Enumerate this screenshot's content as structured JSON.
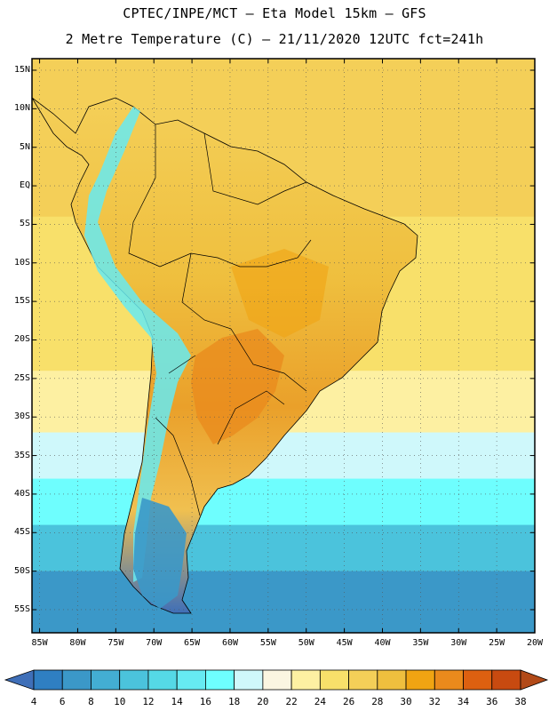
{
  "title": {
    "line1": "CPTEC/INPE/MCT –  Eta Model 15km – GFS",
    "line2": "2 Metre Temperature (C) – 21/11/2020 12UTC fct=241h"
  },
  "map": {
    "region": "South America",
    "lat_range": [
      -58,
      16.5
    ],
    "lon_range": [
      -86,
      -20
    ],
    "lat_labels": [
      "15N",
      "10N",
      "5N",
      "EQ",
      "5S",
      "10S",
      "15S",
      "20S",
      "25S",
      "30S",
      "35S",
      "40S",
      "45S",
      "50S",
      "55S"
    ],
    "lon_labels": [
      "85W",
      "80W",
      "75W",
      "70W",
      "65W",
      "60W",
      "55W",
      "50W",
      "45W",
      "40W",
      "35W",
      "30W",
      "25W",
      "20W"
    ],
    "ocean_temperature_bands_C": [
      {
        "from_lat": 16.5,
        "to_lat": -4,
        "value": 26
      },
      {
        "from_lat": -4,
        "to_lat": -14,
        "value": 25
      },
      {
        "from_lat": -14,
        "to_lat": -24,
        "value": 24
      },
      {
        "from_lat": -24,
        "to_lat": -32,
        "value": 22
      },
      {
        "from_lat": -32,
        "to_lat": -38,
        "value": 19
      },
      {
        "from_lat": -38,
        "to_lat": -44,
        "value": 16
      },
      {
        "from_lat": -44,
        "to_lat": -50,
        "value": 11
      },
      {
        "from_lat": -50,
        "to_lat": -58,
        "value": 7
      }
    ]
  },
  "colorbar": {
    "labels": [
      "4",
      "6",
      "8",
      "10",
      "12",
      "14",
      "16",
      "18",
      "20",
      "22",
      "24",
      "26",
      "28",
      "30",
      "32",
      "34",
      "36",
      "38"
    ],
    "colors": [
      "#3f6fb8",
      "#2f7fc2",
      "#3b98c8",
      "#43aed3",
      "#4bc3dc",
      "#55d9e6",
      "#66eaf2",
      "#6efefe",
      "#cff8fb",
      "#fbf6e1",
      "#fdf0a2",
      "#f8e06a",
      "#f4cf58",
      "#efbf3e",
      "#f0a412",
      "#ea8a1c",
      "#dd6010",
      "#c84a10",
      "#b24a18"
    ]
  }
}
